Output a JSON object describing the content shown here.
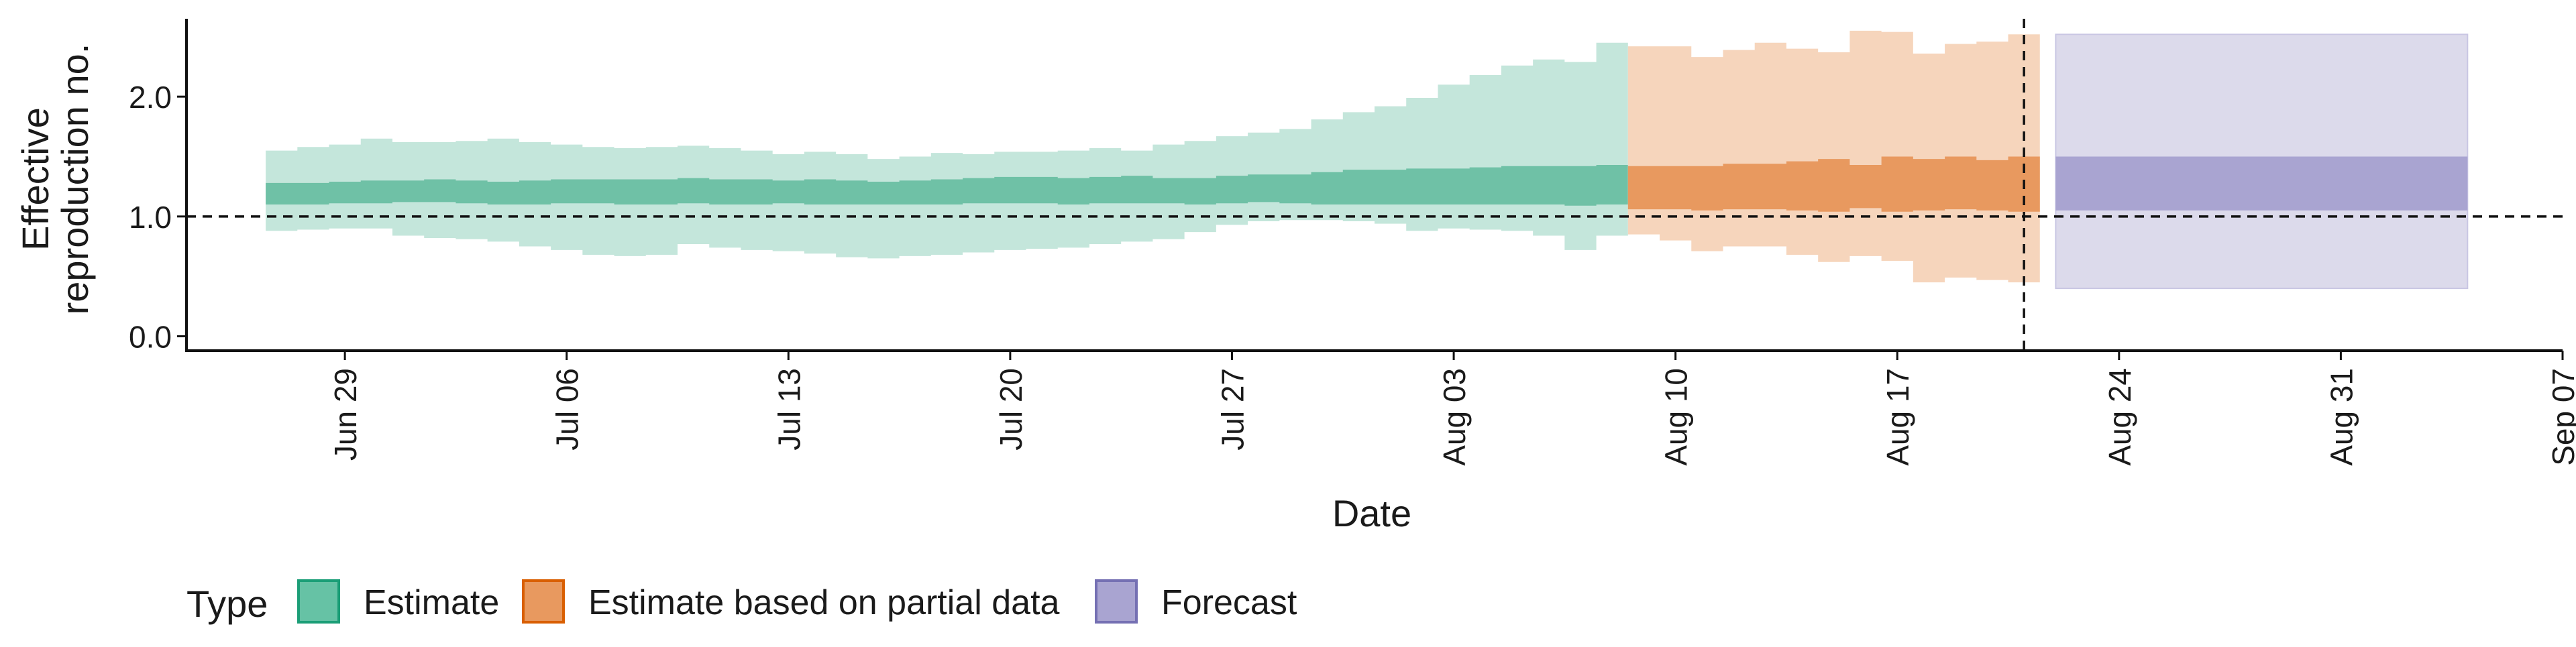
{
  "chart_data": {
    "type": "area",
    "xlabel": "Date",
    "ylabel_lines": [
      "Effective",
      "reproduction no."
    ],
    "x_tick_labels": [
      "Jun 29",
      "Jul 06",
      "Jul 13",
      "Jul 20",
      "Jul 27",
      "Aug 03",
      "Aug 10",
      "Aug 17",
      "Aug 24",
      "Aug 31",
      "Sep 07"
    ],
    "x_tick_dates": [
      "2020-06-29",
      "2020-07-06",
      "2020-07-13",
      "2020-07-20",
      "2020-07-27",
      "2020-08-03",
      "2020-08-10",
      "2020-08-17",
      "2020-08-24",
      "2020-08-31",
      "2020-09-07"
    ],
    "x_range": [
      "2020-06-24",
      "2020-09-07"
    ],
    "y_ticks": [
      0.0,
      1.0,
      2.0
    ],
    "y_tick_labels": [
      "0.0",
      "1.0",
      "2.0"
    ],
    "ylim": [
      -0.12,
      2.65
    ],
    "reference_line_y": 1.0,
    "vertical_line_date": "2020-08-21",
    "grid": false,
    "legend_position": "bottom-left",
    "legend_title": "Type",
    "colors": {
      "Estimate": {
        "fill": "#66c2a5",
        "inner": "#6fc1a6",
        "outer": "#c4e6db",
        "border": "#1b9e77"
      },
      "Estimate based on partial data": {
        "fill": "#e8995f",
        "inner": "#e8995f",
        "outer": "#f6d5bc",
        "border": "#d95f02"
      },
      "Forecast": {
        "fill": "#a9a4d1",
        "inner": "#a9a4d1",
        "outer": "#dcdaeb",
        "border": "#7570b3"
      }
    },
    "series": [
      {
        "name": "Estimate",
        "x": [
          "2020-06-27",
          "2020-06-28",
          "2020-06-29",
          "2020-06-30",
          "2020-07-01",
          "2020-07-02",
          "2020-07-03",
          "2020-07-04",
          "2020-07-05",
          "2020-07-06",
          "2020-07-07",
          "2020-07-08",
          "2020-07-09",
          "2020-07-10",
          "2020-07-11",
          "2020-07-12",
          "2020-07-13",
          "2020-07-14",
          "2020-07-15",
          "2020-07-16",
          "2020-07-17",
          "2020-07-18",
          "2020-07-19",
          "2020-07-20",
          "2020-07-21",
          "2020-07-22",
          "2020-07-23",
          "2020-07-24",
          "2020-07-25",
          "2020-07-26",
          "2020-07-27",
          "2020-07-28",
          "2020-07-29",
          "2020-07-30",
          "2020-07-31",
          "2020-08-01",
          "2020-08-02",
          "2020-08-03",
          "2020-08-04",
          "2020-08-05",
          "2020-08-06",
          "2020-08-07",
          "2020-08-08"
        ],
        "lower_90": [
          0.88,
          0.89,
          0.9,
          0.9,
          0.84,
          0.82,
          0.81,
          0.79,
          0.75,
          0.72,
          0.68,
          0.67,
          0.68,
          0.77,
          0.74,
          0.72,
          0.71,
          0.69,
          0.66,
          0.65,
          0.67,
          0.68,
          0.7,
          0.72,
          0.73,
          0.74,
          0.77,
          0.79,
          0.81,
          0.87,
          0.93,
          0.96,
          0.97,
          0.97,
          0.96,
          0.94,
          0.88,
          0.9,
          0.89,
          0.88,
          0.84,
          0.72,
          0.84
        ],
        "upper_90": [
          1.55,
          1.58,
          1.6,
          1.65,
          1.62,
          1.62,
          1.63,
          1.65,
          1.62,
          1.6,
          1.58,
          1.57,
          1.58,
          1.59,
          1.57,
          1.55,
          1.52,
          1.54,
          1.52,
          1.48,
          1.5,
          1.53,
          1.52,
          1.54,
          1.54,
          1.55,
          1.57,
          1.55,
          1.6,
          1.63,
          1.67,
          1.7,
          1.73,
          1.81,
          1.87,
          1.92,
          1.99,
          2.1,
          2.18,
          2.26,
          2.31,
          2.29,
          2.45
        ],
        "lower_50": [
          1.1,
          1.1,
          1.11,
          1.11,
          1.12,
          1.12,
          1.11,
          1.1,
          1.1,
          1.11,
          1.11,
          1.1,
          1.1,
          1.11,
          1.1,
          1.1,
          1.11,
          1.1,
          1.1,
          1.1,
          1.1,
          1.1,
          1.11,
          1.11,
          1.11,
          1.1,
          1.11,
          1.11,
          1.11,
          1.1,
          1.11,
          1.12,
          1.11,
          1.1,
          1.1,
          1.1,
          1.1,
          1.1,
          1.1,
          1.1,
          1.1,
          1.09,
          1.1
        ],
        "upper_50": [
          1.28,
          1.28,
          1.29,
          1.3,
          1.3,
          1.31,
          1.3,
          1.29,
          1.3,
          1.31,
          1.31,
          1.31,
          1.31,
          1.32,
          1.31,
          1.31,
          1.3,
          1.31,
          1.3,
          1.29,
          1.3,
          1.31,
          1.32,
          1.33,
          1.33,
          1.32,
          1.33,
          1.34,
          1.32,
          1.32,
          1.34,
          1.35,
          1.35,
          1.37,
          1.39,
          1.39,
          1.4,
          1.4,
          1.41,
          1.42,
          1.42,
          1.42,
          1.43
        ]
      },
      {
        "name": "Estimate based on partial data",
        "x": [
          "2020-08-09",
          "2020-08-10",
          "2020-08-11",
          "2020-08-12",
          "2020-08-13",
          "2020-08-14",
          "2020-08-15",
          "2020-08-16",
          "2020-08-17",
          "2020-08-18",
          "2020-08-19",
          "2020-08-20",
          "2020-08-21"
        ],
        "lower_90": [
          0.85,
          0.8,
          0.71,
          0.75,
          0.75,
          0.68,
          0.62,
          0.67,
          0.63,
          0.45,
          0.49,
          0.47,
          0.45
        ],
        "upper_90": [
          2.42,
          2.42,
          2.33,
          2.39,
          2.45,
          2.4,
          2.37,
          2.55,
          2.54,
          2.36,
          2.44,
          2.46,
          2.52
        ],
        "lower_50": [
          1.06,
          1.06,
          1.05,
          1.06,
          1.06,
          1.05,
          1.04,
          1.07,
          1.04,
          1.05,
          1.06,
          1.05,
          1.04
        ],
        "upper_50": [
          1.42,
          1.42,
          1.42,
          1.44,
          1.44,
          1.46,
          1.48,
          1.43,
          1.5,
          1.48,
          1.5,
          1.47,
          1.5
        ]
      },
      {
        "name": "Forecast",
        "x": [
          "2020-08-22",
          "2020-09-04"
        ],
        "lower_90": [
          0.4,
          0.4
        ],
        "upper_90": [
          2.52,
          2.52
        ],
        "lower_50": [
          1.05,
          1.05
        ],
        "upper_50": [
          1.5,
          1.5
        ]
      }
    ]
  }
}
